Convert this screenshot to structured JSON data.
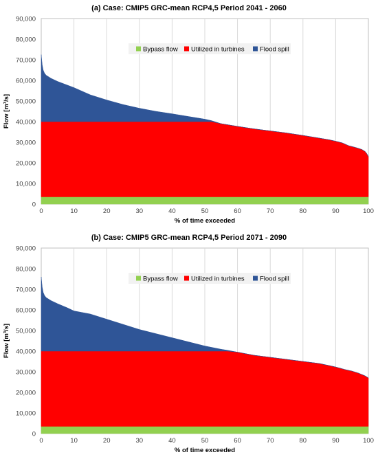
{
  "chart_data": [
    {
      "type": "area",
      "title": "(a)  Case: CMIP5 GRC-mean  RCP4,5  Period 2041 - 2060",
      "xlabel": "% of time exceeded",
      "ylabel": "Flow [m³/s]",
      "xlim": [
        0,
        100
      ],
      "ylim": [
        0,
        90000
      ],
      "x_ticks": [
        "0",
        "10",
        "20",
        "30",
        "40",
        "50",
        "60",
        "70",
        "80",
        "90",
        "100"
      ],
      "y_ticks": [
        "0",
        "10,000",
        "20,000",
        "30,000",
        "40,000",
        "50,000",
        "60,000",
        "70,000",
        "80,000",
        "90,000"
      ],
      "legend_position": "top-center",
      "grid": "vertical",
      "stacked": true,
      "x": [
        0,
        0.3,
        0.6,
        1,
        1.5,
        2,
        3,
        5,
        10,
        15,
        20,
        25,
        30,
        35,
        40,
        45,
        50,
        52,
        55,
        60,
        65,
        70,
        75,
        80,
        85,
        88,
        90,
        92,
        94,
        96,
        98,
        99,
        99.5,
        100
      ],
      "series": [
        {
          "name": "Bypass flow",
          "color": "#92d050",
          "values": [
            3500,
            3500,
            3500,
            3500,
            3500,
            3500,
            3500,
            3500,
            3500,
            3500,
            3500,
            3500,
            3500,
            3500,
            3500,
            3500,
            3500,
            3500,
            3500,
            3500,
            3500,
            3500,
            3500,
            3500,
            3500,
            3500,
            3500,
            3500,
            3500,
            3500,
            3500,
            3500,
            3500,
            3500
          ]
        },
        {
          "name": "Utilized in turbines",
          "color": "#ff0000",
          "values": [
            36500,
            36500,
            36500,
            36500,
            36500,
            36500,
            36500,
            36500,
            36500,
            36500,
            36500,
            36500,
            36500,
            36500,
            36500,
            36500,
            36500,
            36500,
            35500,
            34200,
            33000,
            32000,
            31000,
            29800,
            28500,
            27700,
            27000,
            26200,
            24800,
            24000,
            23000,
            22000,
            21000,
            19500
          ]
        },
        {
          "name": "Flood spill",
          "color": "#2f5597",
          "values": [
            32500,
            27500,
            25000,
            23500,
            22500,
            22000,
            21000,
            19500,
            16500,
            13000,
            10500,
            8300,
            6500,
            5000,
            3800,
            2500,
            1200,
            500,
            0,
            0,
            0,
            0,
            0,
            0,
            0,
            0,
            0,
            0,
            0,
            0,
            0,
            0,
            0,
            0
          ]
        }
      ]
    },
    {
      "type": "area",
      "title": "(b)  Case: CMIP5 GRC-mean  RCP4,5  Period 2071 - 2090",
      "xlabel": "% of time exceeded",
      "ylabel": "Flow [m³/s]",
      "xlim": [
        0,
        100
      ],
      "ylim": [
        0,
        90000
      ],
      "x_ticks": [
        "0",
        "10",
        "20",
        "30",
        "40",
        "50",
        "60",
        "70",
        "80",
        "90",
        "100"
      ],
      "y_ticks": [
        "0",
        "10,000",
        "20,000",
        "30,000",
        "40,000",
        "50,000",
        "60,000",
        "70,000",
        "80,000",
        "90,000"
      ],
      "legend_position": "top-center",
      "grid": "vertical",
      "stacked": true,
      "x": [
        0,
        0.3,
        0.6,
        1,
        1.5,
        2,
        3,
        5,
        8,
        10,
        15,
        20,
        25,
        30,
        35,
        40,
        45,
        50,
        55,
        57,
        60,
        65,
        70,
        75,
        80,
        85,
        88,
        90,
        93,
        95,
        97,
        99,
        100
      ],
      "series": [
        {
          "name": "Bypass flow",
          "color": "#92d050",
          "values": [
            3500,
            3500,
            3500,
            3500,
            3500,
            3500,
            3500,
            3500,
            3500,
            3500,
            3500,
            3500,
            3500,
            3500,
            3500,
            3500,
            3500,
            3500,
            3500,
            3500,
            3500,
            3500,
            3500,
            3500,
            3500,
            3500,
            3500,
            3500,
            3500,
            3500,
            3500,
            3500,
            3500
          ]
        },
        {
          "name": "Utilized in turbines",
          "color": "#ff0000",
          "values": [
            36500,
            36500,
            36500,
            36500,
            36500,
            36500,
            36500,
            36500,
            36500,
            36500,
            36500,
            36500,
            36500,
            36500,
            36500,
            36500,
            36500,
            36500,
            36500,
            36500,
            36000,
            34500,
            33500,
            32500,
            31500,
            30500,
            29500,
            28800,
            27500,
            26800,
            25800,
            24500,
            23500
          ]
        },
        {
          "name": "Flood spill",
          "color": "#2f5597",
          "values": [
            36000,
            31000,
            28500,
            27000,
            26000,
            25500,
            24500,
            23000,
            21000,
            19500,
            18000,
            15500,
            13000,
            10500,
            8500,
            6500,
            4500,
            2500,
            900,
            400,
            0,
            0,
            0,
            0,
            0,
            0,
            0,
            0,
            0,
            0,
            0,
            0,
            0
          ]
        }
      ]
    }
  ]
}
